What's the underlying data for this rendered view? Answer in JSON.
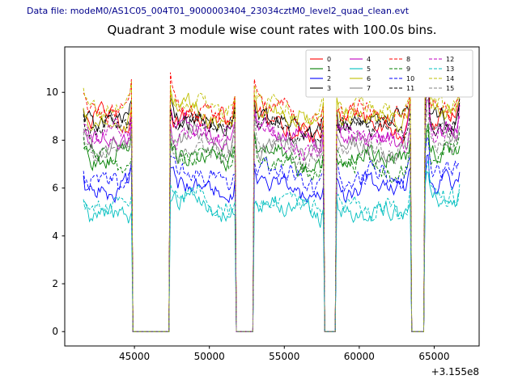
{
  "header": {
    "label": "Data file: modeM0/AS1C05_004T01_9000003404_23034cztM0_level2_quad_clean.evt",
    "color": "#00008b"
  },
  "chart_data": {
    "type": "line",
    "title": "Quadrant 3 module wise count rates with 100.0s bins.",
    "xlabel": "",
    "ylabel": "",
    "x_offset_text": "+3.155e8",
    "xlim": [
      40350,
      68000
    ],
    "ylim": [
      -0.6,
      11.9
    ],
    "xticks": [
      45000,
      50000,
      55000,
      60000,
      65000
    ],
    "yticks": [
      0,
      2,
      4,
      6,
      8,
      10
    ],
    "grid": false,
    "legend": {
      "position": "upper right",
      "columns": 4,
      "order": "column-major"
    },
    "bin_seconds": 100,
    "x_start": 41600,
    "x_end": 66750,
    "segments": [
      [
        41600,
        44850
      ],
      [
        47400,
        51750
      ],
      [
        53000,
        57650
      ],
      [
        58450,
        63400
      ],
      [
        64350,
        66750
      ]
    ],
    "gap_value": 0,
    "spike": {
      "x": 64550,
      "peak_add": 2.3,
      "width": 130
    },
    "series": [
      {
        "name": "0",
        "color": "#ff0000",
        "dash": "solid",
        "baseline": 8.6
      },
      {
        "name": "1",
        "color": "#007f00",
        "dash": "solid",
        "baseline": 7.2
      },
      {
        "name": "2",
        "color": "#0000ff",
        "dash": "solid",
        "baseline": 5.9
      },
      {
        "name": "3",
        "color": "#000000",
        "dash": "solid",
        "baseline": 8.7
      },
      {
        "name": "4",
        "color": "#bf00bf",
        "dash": "solid",
        "baseline": 8.1
      },
      {
        "name": "5",
        "color": "#00bfbf",
        "dash": "solid",
        "baseline": 5.0
      },
      {
        "name": "6",
        "color": "#bfbf00",
        "dash": "solid",
        "baseline": 8.9
      },
      {
        "name": "7",
        "color": "#808080",
        "dash": "solid",
        "baseline": 7.7
      },
      {
        "name": "8",
        "color": "#ff0000",
        "dash": "dashed",
        "baseline": 9.1
      },
      {
        "name": "9",
        "color": "#007f00",
        "dash": "dashed",
        "baseline": 7.0
      },
      {
        "name": "10",
        "color": "#0000ff",
        "dash": "dashed",
        "baseline": 6.4
      },
      {
        "name": "11",
        "color": "#000000",
        "dash": "dashed",
        "baseline": 8.4
      },
      {
        "name": "12",
        "color": "#bf00bf",
        "dash": "dashed",
        "baseline": 8.0
      },
      {
        "name": "13",
        "color": "#00bfbf",
        "dash": "dashed",
        "baseline": 5.3
      },
      {
        "name": "14",
        "color": "#bfbf00",
        "dash": "dashed",
        "baseline": 9.2
      },
      {
        "name": "15",
        "color": "#808080",
        "dash": "dashed",
        "baseline": 7.5
      }
    ]
  }
}
